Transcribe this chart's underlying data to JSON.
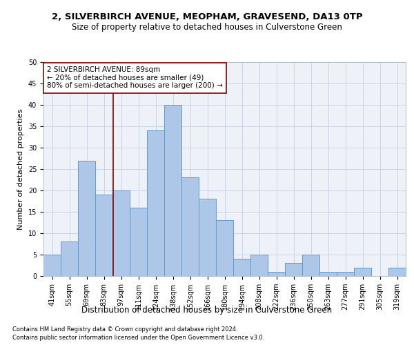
{
  "title1": "2, SILVERBIRCH AVENUE, MEOPHAM, GRAVESEND, DA13 0TP",
  "title2": "Size of property relative to detached houses in Culverstone Green",
  "xlabel": "Distribution of detached houses by size in Culverstone Green",
  "ylabel": "Number of detached properties",
  "footnote1": "Contains HM Land Registry data © Crown copyright and database right 2024.",
  "footnote2": "Contains public sector information licensed under the Open Government Licence v3.0.",
  "bar_labels": [
    "41sqm",
    "55sqm",
    "69sqm",
    "83sqm",
    "97sqm",
    "111sqm",
    "124sqm",
    "138sqm",
    "152sqm",
    "166sqm",
    "180sqm",
    "194sqm",
    "208sqm",
    "222sqm",
    "236sqm",
    "250sqm",
    "263sqm",
    "277sqm",
    "291sqm",
    "305sqm",
    "319sqm"
  ],
  "bar_values": [
    5,
    8,
    27,
    19,
    20,
    16,
    34,
    40,
    23,
    18,
    13,
    4,
    5,
    1,
    3,
    5,
    1,
    1,
    2,
    0,
    2
  ],
  "bar_color": "#aec6e8",
  "bar_edge_color": "#5b9bd5",
  "vline_x_index": 3.55,
  "vline_color": "#8b0000",
  "annotation_line1": "2 SILVERBIRCH AVENUE: 89sqm",
  "annotation_line2": "← 20% of detached houses are smaller (49)",
  "annotation_line3": "80% of semi-detached houses are larger (200) →",
  "annotation_box_color": "white",
  "annotation_box_edge": "#8b0000",
  "ylim": [
    0,
    50
  ],
  "yticks": [
    0,
    5,
    10,
    15,
    20,
    25,
    30,
    35,
    40,
    45,
    50
  ],
  "grid_color": "#c8d4e8",
  "bg_color": "#eef2f8",
  "title1_fontsize": 9.5,
  "title2_fontsize": 8.5,
  "xlabel_fontsize": 8.5,
  "ylabel_fontsize": 8,
  "tick_fontsize": 7,
  "annotation_fontsize": 7.5,
  "footnote_fontsize": 6
}
